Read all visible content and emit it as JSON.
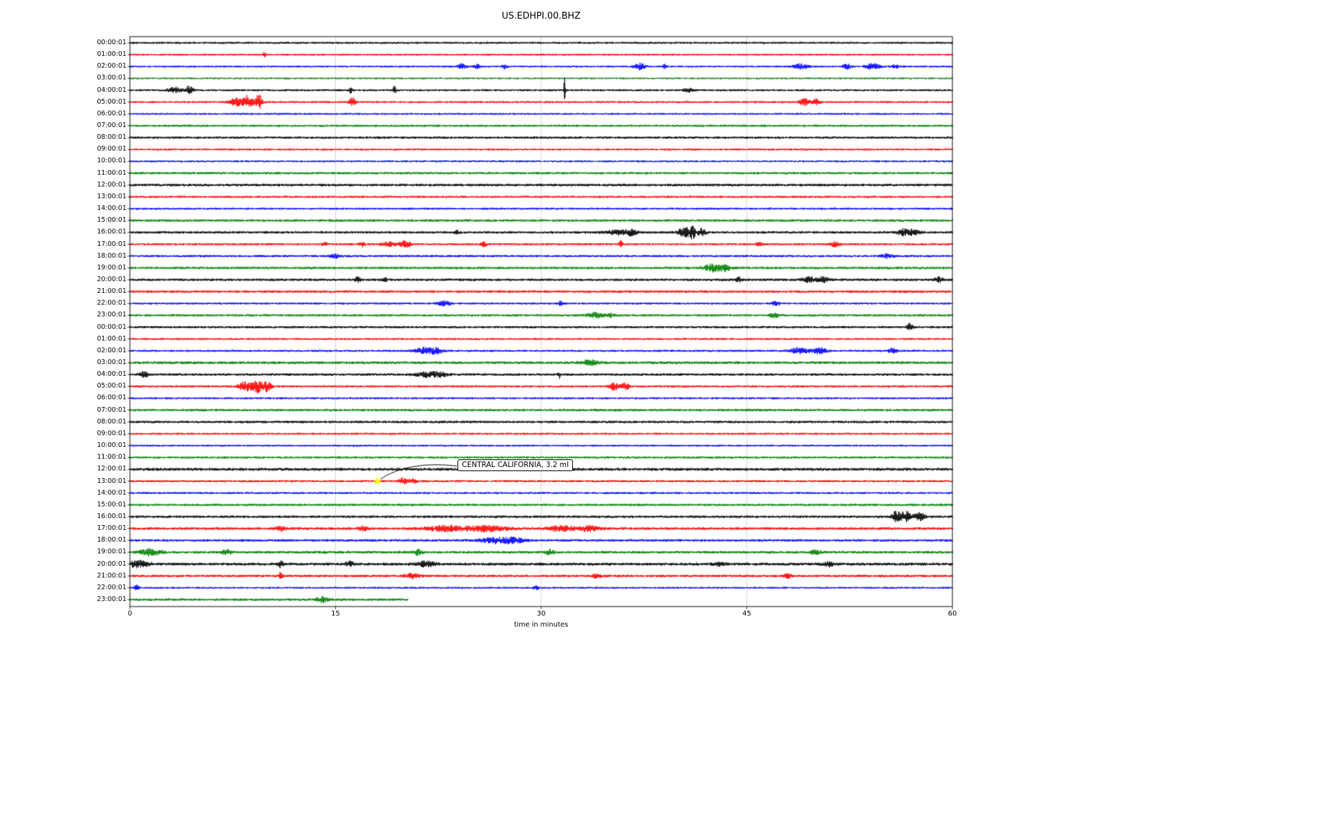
{
  "chart_data": {
    "type": "line",
    "variant": "helicorder-dayplot",
    "title": "US.EDHPI.00.BHZ",
    "xlabel": "time in minutes",
    "ylabel": "",
    "xlim": [
      0,
      60
    ],
    "x_ticks": [
      0,
      15,
      30,
      45,
      60
    ],
    "grid": true,
    "trace_color_cycle": [
      "black",
      "red",
      "blue",
      "green"
    ],
    "colors": {
      "black": "#000000",
      "red": "#ff0000",
      "blue": "#0000ff",
      "green": "#008000"
    },
    "annotation": {
      "text": "CENTRAL CALIFORNIA, 3.2 ml",
      "row_index": 37,
      "minute": 18.07,
      "marker": "star",
      "marker_color": "#ffff00"
    },
    "rows": [
      {
        "label": "00:00:01",
        "color": "black",
        "amp": 1.5,
        "events": []
      },
      {
        "label": "01:00:01",
        "color": "red",
        "amp": 1.4,
        "events": [
          [
            9.8,
            3.5,
            0.1
          ]
        ]
      },
      {
        "label": "02:00:01",
        "color": "blue",
        "amp": 1.4,
        "events": [
          [
            24.2,
            3.5,
            0.3
          ],
          [
            25.3,
            4,
            0.2
          ],
          [
            27.3,
            3.5,
            0.15
          ],
          [
            37.2,
            4.5,
            0.4
          ],
          [
            39,
            2.5,
            0.2
          ],
          [
            48.9,
            3.5,
            0.5
          ],
          [
            52.3,
            3.5,
            0.3
          ],
          [
            54.2,
            4.5,
            0.5
          ],
          [
            55.8,
            2.5,
            0.3
          ]
        ]
      },
      {
        "label": "03:00:01",
        "color": "green",
        "amp": 1.3,
        "events": []
      },
      {
        "label": "04:00:01",
        "color": "black",
        "amp": 1.5,
        "events": [
          [
            3.2,
            4,
            0.5
          ],
          [
            4.3,
            5,
            0.3
          ],
          [
            16.1,
            4,
            0.12
          ],
          [
            19.3,
            6,
            0.1
          ],
          [
            31.7,
            22,
            0.07
          ],
          [
            40.7,
            3,
            0.3
          ]
        ]
      },
      {
        "label": "05:00:01",
        "color": "red",
        "amp": 1.5,
        "events": [
          [
            7.7,
            6,
            0.4
          ],
          [
            8.6,
            9,
            0.4
          ],
          [
            9.4,
            11,
            0.25
          ],
          [
            16.2,
            6,
            0.25
          ],
          [
            49.2,
            5,
            0.35
          ],
          [
            50,
            4,
            0.3
          ]
        ]
      },
      {
        "label": "06:00:01",
        "color": "blue",
        "amp": 1.4,
        "events": []
      },
      {
        "label": "07:00:01",
        "color": "green",
        "amp": 1.6,
        "events": []
      },
      {
        "label": "08:00:01",
        "color": "black",
        "amp": 1.7,
        "events": []
      },
      {
        "label": "09:00:01",
        "color": "red",
        "amp": 1.5,
        "events": []
      },
      {
        "label": "10:00:01",
        "color": "blue",
        "amp": 1.4,
        "events": []
      },
      {
        "label": "11:00:01",
        "color": "green",
        "amp": 1.7,
        "events": []
      },
      {
        "label": "12:00:01",
        "color": "black",
        "amp": 1.9,
        "events": []
      },
      {
        "label": "13:00:01",
        "color": "red",
        "amp": 1.6,
        "events": []
      },
      {
        "label": "14:00:01",
        "color": "blue",
        "amp": 1.5,
        "events": []
      },
      {
        "label": "15:00:01",
        "color": "green",
        "amp": 1.8,
        "events": []
      },
      {
        "label": "16:00:01",
        "color": "black",
        "amp": 1.8,
        "events": [
          [
            23.9,
            2.5,
            0.2
          ],
          [
            35.5,
            3.5,
            0.8
          ],
          [
            36.6,
            4,
            0.4
          ],
          [
            40.4,
            7,
            0.4
          ],
          [
            41,
            9,
            0.25
          ],
          [
            41.7,
            6,
            0.3
          ],
          [
            56.3,
            4,
            0.4
          ],
          [
            57.1,
            4,
            0.5
          ]
        ]
      },
      {
        "label": "17:00:01",
        "color": "red",
        "amp": 1.6,
        "events": [
          [
            14.2,
            2.5,
            0.2
          ],
          [
            16.9,
            3.5,
            0.2
          ],
          [
            18.9,
            3.5,
            0.5
          ],
          [
            20.1,
            4.5,
            0.4
          ],
          [
            25.8,
            3.5,
            0.2
          ],
          [
            35.8,
            5,
            0.12
          ],
          [
            45.9,
            2.5,
            0.2
          ],
          [
            51.4,
            3.5,
            0.3
          ]
        ]
      },
      {
        "label": "18:00:01",
        "color": "blue",
        "amp": 1.6,
        "events": [
          [
            14.9,
            2.5,
            0.4
          ],
          [
            55.2,
            2.5,
            0.5
          ]
        ]
      },
      {
        "label": "19:00:01",
        "color": "green",
        "amp": 1.8,
        "events": [
          [
            42.5,
            5,
            0.6
          ],
          [
            43.4,
            4,
            0.4
          ]
        ]
      },
      {
        "label": "20:00:01",
        "color": "black",
        "amp": 1.8,
        "events": [
          [
            16.6,
            3.5,
            0.2
          ],
          [
            18.6,
            3.5,
            0.15
          ],
          [
            44.4,
            3.5,
            0.2
          ],
          [
            49.6,
            3.5,
            0.5
          ],
          [
            50.6,
            3.5,
            0.4
          ],
          [
            59,
            3.5,
            0.3
          ]
        ]
      },
      {
        "label": "21:00:01",
        "color": "red",
        "amp": 1.8,
        "events": []
      },
      {
        "label": "22:00:01",
        "color": "blue",
        "amp": 1.5,
        "events": [
          [
            22.9,
            3,
            0.5
          ],
          [
            31.4,
            5.5,
            0.1
          ],
          [
            47.1,
            2.5,
            0.3
          ]
        ]
      },
      {
        "label": "23:00:01",
        "color": "green",
        "amp": 1.7,
        "events": [
          [
            33.9,
            3.5,
            0.6
          ],
          [
            35.1,
            2.5,
            0.3
          ],
          [
            47,
            3.5,
            0.3
          ]
        ]
      },
      {
        "label": "00:00:01",
        "color": "black",
        "amp": 1.7,
        "events": [
          [
            56.9,
            5,
            0.2
          ]
        ]
      },
      {
        "label": "01:00:01",
        "color": "red",
        "amp": 1.5,
        "events": []
      },
      {
        "label": "02:00:01",
        "color": "blue",
        "amp": 1.5,
        "events": [
          [
            21.5,
            4.5,
            0.7
          ],
          [
            22.4,
            3.5,
            0.4
          ],
          [
            48.8,
            4.5,
            0.6
          ],
          [
            50.3,
            4.5,
            0.5
          ],
          [
            55.6,
            3.5,
            0.3
          ]
        ]
      },
      {
        "label": "03:00:01",
        "color": "green",
        "amp": 2.0,
        "events": [
          [
            33.6,
            3.5,
            0.6
          ]
        ]
      },
      {
        "label": "04:00:01",
        "color": "black",
        "amp": 1.8,
        "events": [
          [
            1,
            3.5,
            0.3
          ],
          [
            21.6,
            2.8,
            0.8
          ],
          [
            22.6,
            2.8,
            0.6
          ],
          [
            31.3,
            4.5,
            0.1
          ]
        ]
      },
      {
        "label": "05:00:01",
        "color": "red",
        "amp": 1.6,
        "events": [
          [
            8.4,
            6,
            0.5
          ],
          [
            9.3,
            8.5,
            0.4
          ],
          [
            10,
            7,
            0.3
          ],
          [
            35.3,
            5.5,
            0.35
          ],
          [
            36.1,
            4.5,
            0.3
          ]
        ]
      },
      {
        "label": "06:00:01",
        "color": "blue",
        "amp": 1.5,
        "events": []
      },
      {
        "label": "07:00:01",
        "color": "green",
        "amp": 1.8,
        "events": []
      },
      {
        "label": "08:00:01",
        "color": "black",
        "amp": 1.8,
        "events": []
      },
      {
        "label": "09:00:01",
        "color": "red",
        "amp": 1.5,
        "events": []
      },
      {
        "label": "10:00:01",
        "color": "blue",
        "amp": 1.4,
        "events": []
      },
      {
        "label": "11:00:01",
        "color": "green",
        "amp": 1.6,
        "events": []
      },
      {
        "label": "12:00:01",
        "color": "black",
        "amp": 2.1,
        "events": []
      },
      {
        "label": "13:00:01",
        "color": "red",
        "amp": 1.6,
        "events": [
          [
            19.9,
            4.5,
            0.3
          ],
          [
            20.6,
            3,
            0.25
          ]
        ]
      },
      {
        "label": "14:00:01",
        "color": "blue",
        "amp": 1.5,
        "events": []
      },
      {
        "label": "15:00:01",
        "color": "green",
        "amp": 1.7,
        "events": []
      },
      {
        "label": "16:00:01",
        "color": "black",
        "amp": 1.8,
        "events": [
          [
            55.9,
            8,
            0.3
          ],
          [
            56.6,
            7,
            0.4
          ],
          [
            57.6,
            5,
            0.4
          ]
        ]
      },
      {
        "label": "17:00:01",
        "color": "red",
        "amp": 1.9,
        "events": [
          [
            11,
            3.5,
            0.3
          ],
          [
            17,
            3.5,
            0.3
          ],
          [
            23,
            3.5,
            1.5
          ],
          [
            26,
            3.5,
            1.5
          ],
          [
            31.5,
            3.5,
            1.0
          ],
          [
            33.5,
            3.5,
            0.8
          ]
        ]
      },
      {
        "label": "18:00:01",
        "color": "blue",
        "amp": 1.8,
        "events": [
          [
            26.6,
            3.5,
            1.0
          ],
          [
            28,
            3.5,
            0.8
          ]
        ]
      },
      {
        "label": "19:00:01",
        "color": "green",
        "amp": 1.9,
        "events": [
          [
            1.5,
            4,
            0.8
          ],
          [
            7,
            3.5,
            0.4
          ],
          [
            21,
            3.5,
            0.3
          ],
          [
            30.6,
            3.5,
            0.3
          ],
          [
            50,
            2.5,
            0.4
          ]
        ]
      },
      {
        "label": "20:00:01",
        "color": "black",
        "amp": 2.1,
        "events": [
          [
            0.6,
            4,
            0.8
          ],
          [
            11,
            4.5,
            0.2
          ],
          [
            16,
            3.5,
            0.3
          ],
          [
            21.6,
            3.5,
            0.6
          ],
          [
            43,
            2.5,
            0.4
          ],
          [
            51,
            2.5,
            0.4
          ]
        ]
      },
      {
        "label": "21:00:01",
        "color": "red",
        "amp": 1.8,
        "events": [
          [
            11,
            5,
            0.12
          ],
          [
            20.6,
            3.5,
            0.5
          ],
          [
            34,
            2.5,
            0.3
          ],
          [
            48,
            2.5,
            0.3
          ]
        ]
      },
      {
        "label": "22:00:01",
        "color": "blue",
        "amp": 1.4,
        "events": [
          [
            0.5,
            4.5,
            0.15
          ],
          [
            29.6,
            3.5,
            0.15
          ]
        ]
      },
      {
        "label": "23:00:01",
        "color": "green",
        "amp": 1.8,
        "end": 20.3,
        "events": [
          [
            14,
            3.5,
            0.4
          ]
        ]
      }
    ]
  }
}
